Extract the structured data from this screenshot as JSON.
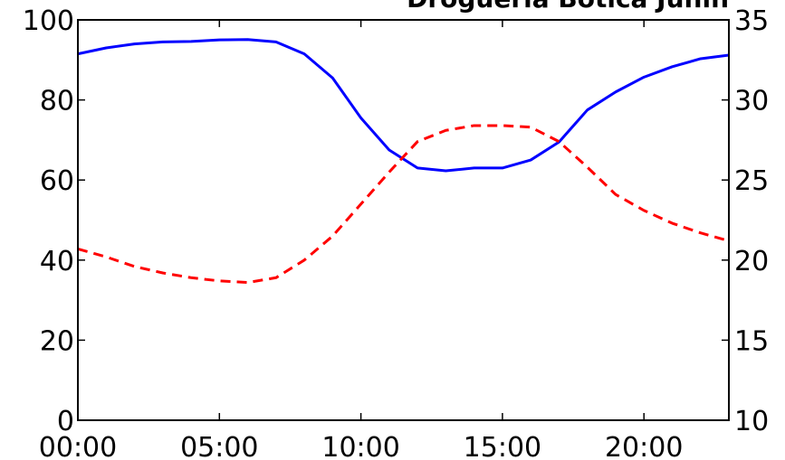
{
  "chart_data": {
    "type": "line",
    "title": "Drogueria Botica Junin",
    "xlabel": "",
    "ylabel": "",
    "y2label": "",
    "x": [
      "00:00",
      "01:00",
      "02:00",
      "03:00",
      "04:00",
      "05:00",
      "06:00",
      "07:00",
      "08:00",
      "09:00",
      "10:00",
      "11:00",
      "12:00",
      "13:00",
      "14:00",
      "15:00",
      "16:00",
      "17:00",
      "18:00",
      "19:00",
      "20:00",
      "21:00",
      "22:00",
      "23:00"
    ],
    "xlim": [
      0,
      23
    ],
    "xticks": [
      {
        "value": 0,
        "label": "00:00"
      },
      {
        "value": 5,
        "label": "05:00"
      },
      {
        "value": 10,
        "label": "10:00"
      },
      {
        "value": 15,
        "label": "15:00"
      },
      {
        "value": 20,
        "label": "20:00"
      }
    ],
    "ylim": [
      0,
      100
    ],
    "yticks": [
      {
        "value": 0,
        "label": "0"
      },
      {
        "value": 20,
        "label": "20"
      },
      {
        "value": 40,
        "label": "40"
      },
      {
        "value": 60,
        "label": "60"
      },
      {
        "value": 80,
        "label": "80"
      },
      {
        "value": 100,
        "label": "100"
      }
    ],
    "y2lim": [
      10,
      35
    ],
    "y2ticks": [
      {
        "value": 10,
        "label": "10"
      },
      {
        "value": 15,
        "label": "15"
      },
      {
        "value": 20,
        "label": "20"
      },
      {
        "value": 25,
        "label": "25"
      },
      {
        "value": 30,
        "label": "30"
      },
      {
        "value": 35,
        "label": "35"
      }
    ],
    "grid": false,
    "series": [
      {
        "axis": "left",
        "color": "#0000ff",
        "style": "solid",
        "values": [
          91.5,
          93,
          94,
          94.5,
          94.6,
          95,
          95.1,
          94.5,
          91.5,
          85.5,
          75.5,
          67.5,
          63,
          62.3,
          63,
          63,
          65,
          69.5,
          77.5,
          82,
          85.7,
          88.3,
          90.3,
          91.2
        ]
      },
      {
        "axis": "right",
        "color": "#ff0000",
        "style": "dashed",
        "values": [
          20.7,
          20.2,
          19.6,
          19.2,
          18.9,
          18.7,
          18.6,
          18.9,
          20.0,
          21.5,
          23.5,
          25.5,
          27.4,
          28.1,
          28.4,
          28.4,
          28.3,
          27.4,
          25.8,
          24.1,
          23.1,
          22.3,
          21.7,
          21.2
        ]
      }
    ]
  }
}
